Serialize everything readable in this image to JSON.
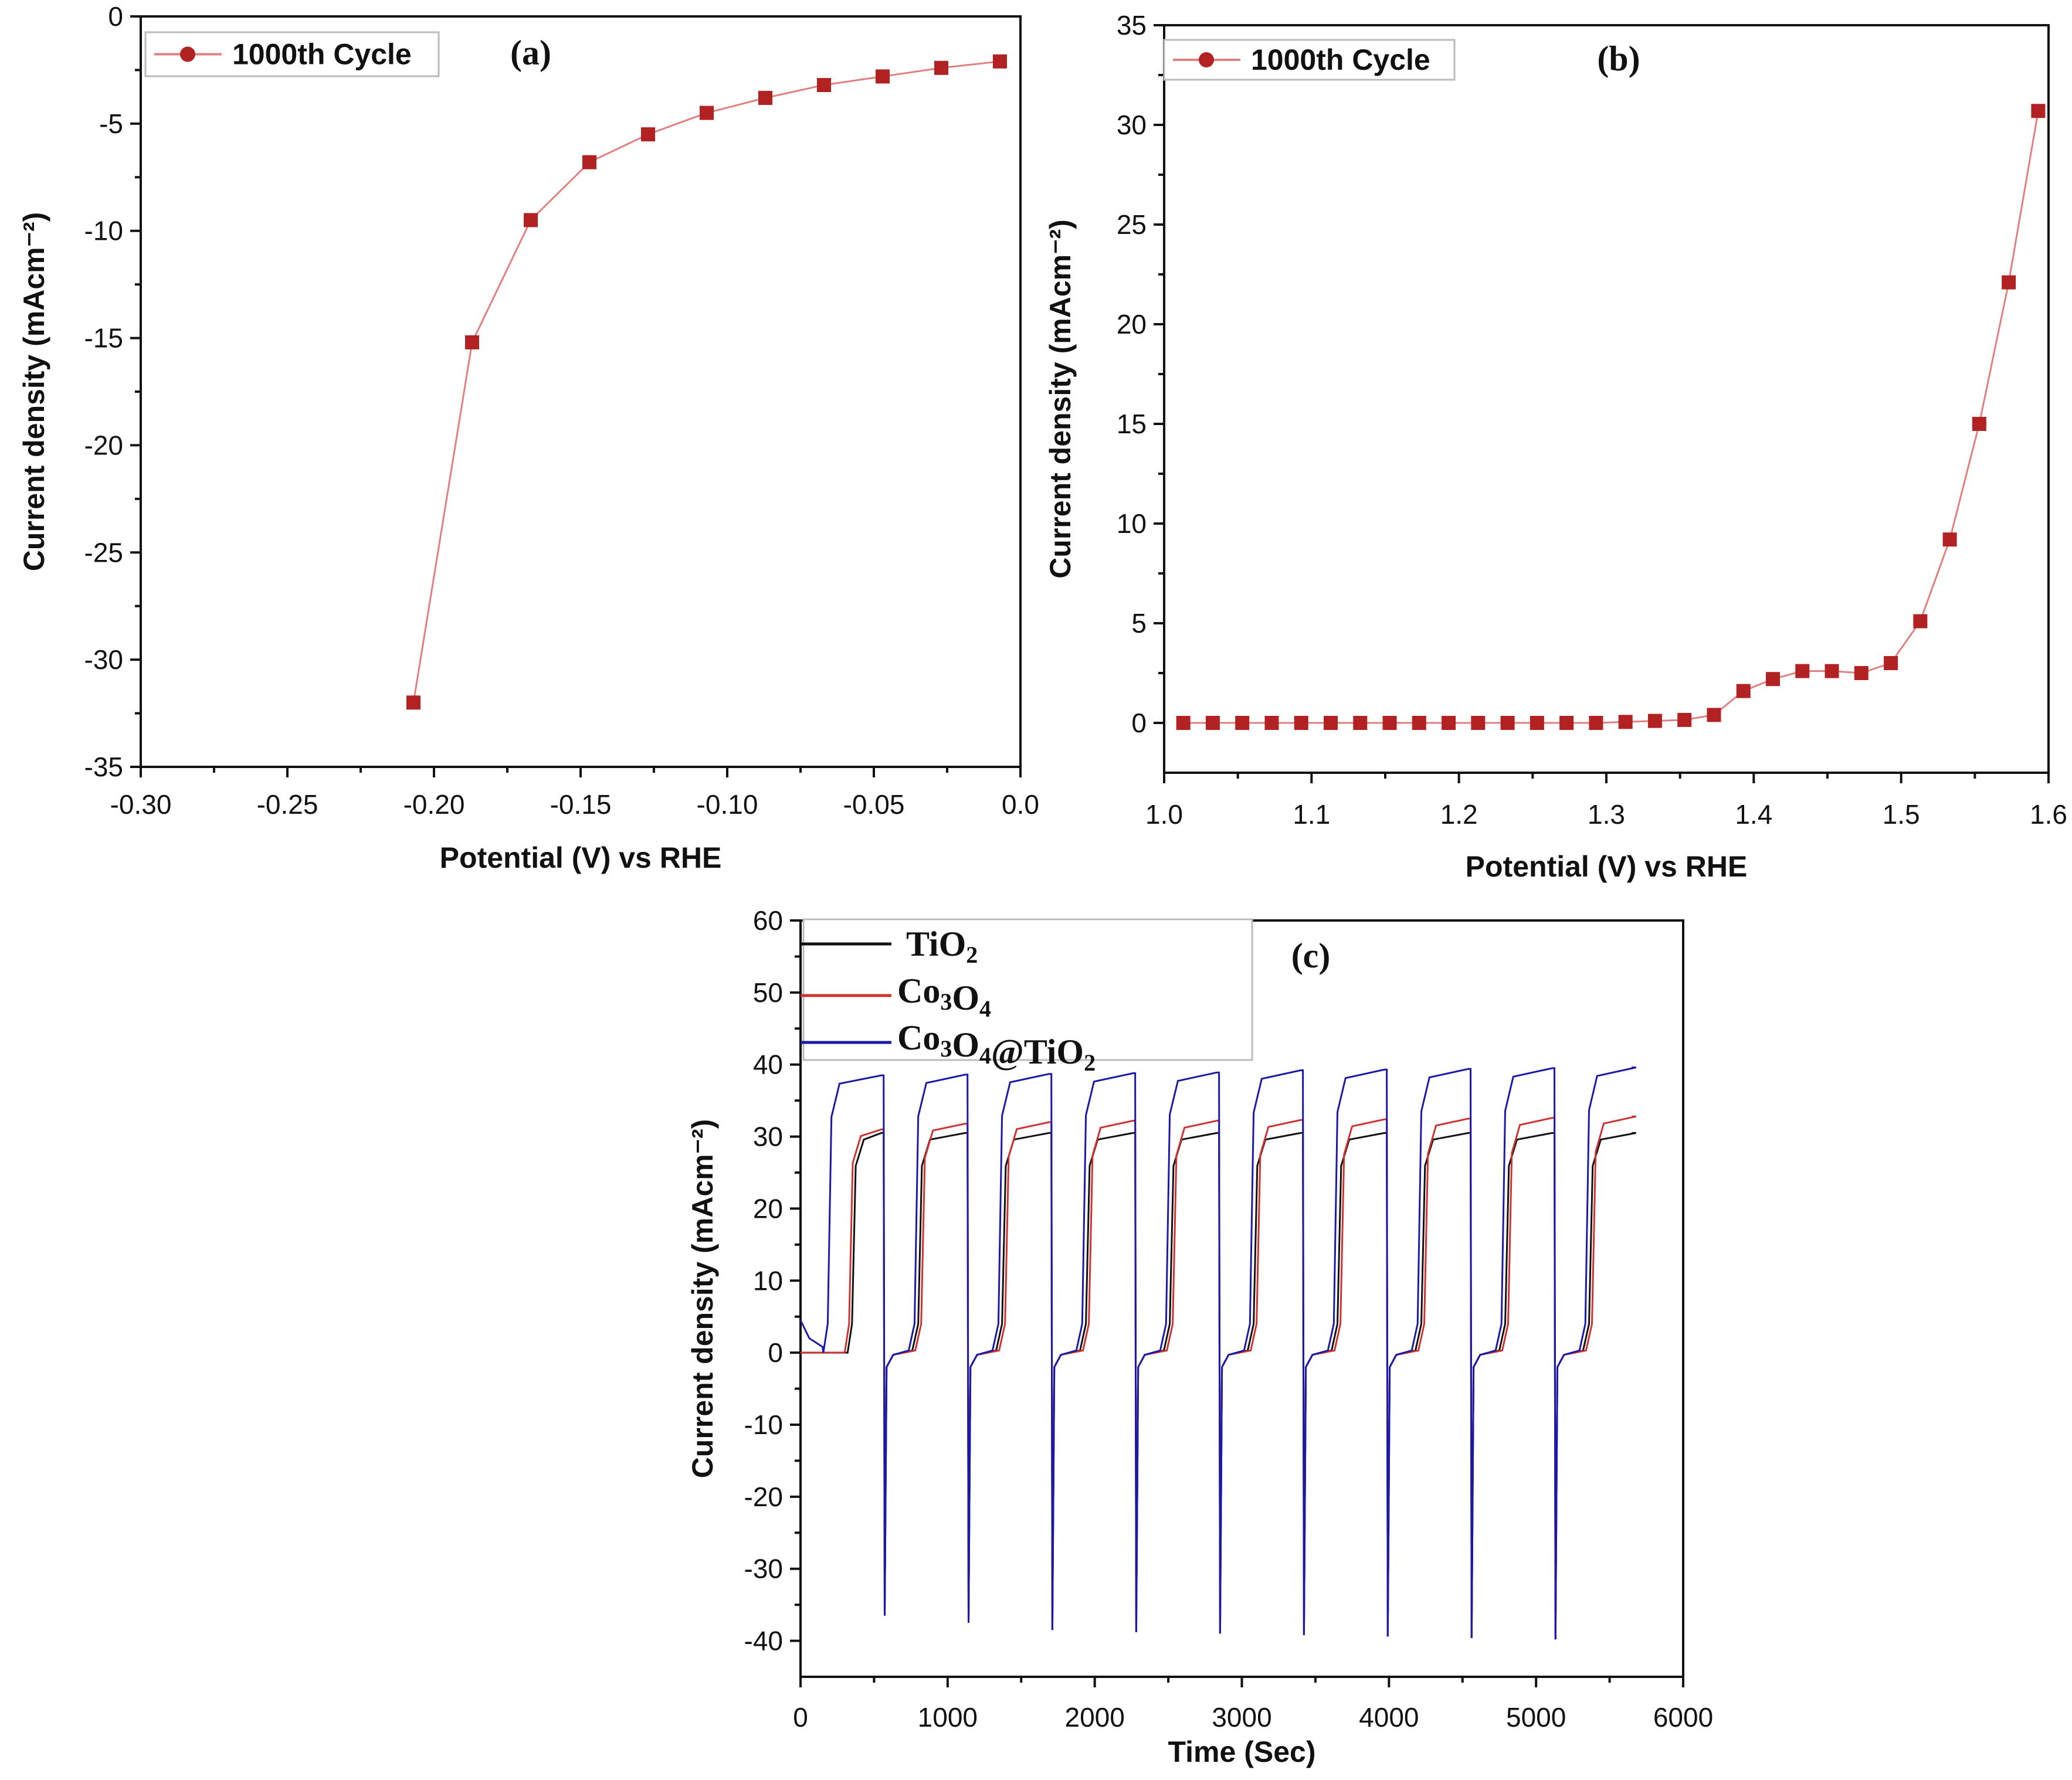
{
  "figure": {
    "colors": {
      "marker": "#b22222",
      "marker_line": "#e08080",
      "tio2": "#111111",
      "co3o4": "#cc3333",
      "composite": "#1a1aa6"
    }
  },
  "chart_data": [
    {
      "id": "a",
      "type": "line",
      "panel_label": "(a)",
      "xlabel": "Potential (V) vs RHE",
      "ylabel": "Current density (mAcm⁻²)",
      "xlim": [
        -0.3,
        0.0
      ],
      "ylim": [
        -35,
        0
      ],
      "xticks": [
        "-0.30",
        "-0.25",
        "-0.20",
        "-0.15",
        "-0.10",
        "-0.05",
        "0.0"
      ],
      "yticks": [
        "0",
        "-5",
        "-10",
        "-15",
        "-20",
        "-25",
        "-30",
        "-35"
      ],
      "series": [
        {
          "name": "1000th Cycle",
          "x": [
            -0.207,
            -0.187,
            -0.167,
            -0.147,
            -0.127,
            -0.107,
            -0.087,
            -0.067,
            -0.047,
            -0.027,
            -0.007
          ],
          "y": [
            -32.0,
            -15.2,
            -9.5,
            -6.8,
            -5.5,
            -4.5,
            -3.8,
            -3.2,
            -2.8,
            -2.4,
            -2.1
          ]
        }
      ]
    },
    {
      "id": "b",
      "type": "line",
      "panel_label": "(b)",
      "xlabel": "Potential (V) vs RHE",
      "ylabel": "Current density (mAcm⁻²)",
      "xlim": [
        1.0,
        1.6
      ],
      "ylim": [
        -2.5,
        35
      ],
      "xticks": [
        "1.0",
        "1.1",
        "1.2",
        "1.3",
        "1.4",
        "1.5",
        "1.6"
      ],
      "yticks": [
        "0",
        "5",
        "10",
        "15",
        "20",
        "25",
        "30",
        "35"
      ],
      "series": [
        {
          "name": "1000th Cycle",
          "x": [
            1.013,
            1.033,
            1.053,
            1.073,
            1.093,
            1.113,
            1.133,
            1.153,
            1.173,
            1.193,
            1.213,
            1.233,
            1.253,
            1.273,
            1.293,
            1.313,
            1.333,
            1.353,
            1.373,
            1.393,
            1.413,
            1.433,
            1.453,
            1.473,
            1.493,
            1.513,
            1.533,
            1.553,
            1.573,
            1.593
          ],
          "y": [
            0,
            0,
            0,
            0,
            0,
            0,
            0,
            0,
            0,
            0,
            0,
            0,
            0,
            0,
            0,
            0.05,
            0.1,
            0.15,
            0.4,
            1.6,
            2.2,
            2.6,
            2.6,
            2.5,
            3.0,
            5.1,
            9.2,
            15.0,
            22.1,
            30.7
          ]
        }
      ]
    },
    {
      "id": "c",
      "type": "line",
      "panel_label": "(c)",
      "xlabel": "Time (Sec)",
      "ylabel": "Current density (mAcm⁻²)",
      "xlim": [
        0,
        6000
      ],
      "ylim": [
        -45,
        60
      ],
      "xticks": [
        "0",
        "1000",
        "2000",
        "3000",
        "4000",
        "5000",
        "6000"
      ],
      "yticks": [
        "60",
        "50",
        "40",
        "30",
        "20",
        "10",
        "0",
        "-10",
        "-20",
        "-30",
        "-40"
      ],
      "legend": [
        {
          "text": "TiO",
          "sub": "2",
          "after": ""
        },
        {
          "text": "Co",
          "sub": "3",
          "mid": "O",
          "sub2": "4",
          "after": ""
        },
        {
          "text": "Co",
          "sub": "3",
          "mid": "O",
          "sub2": "4",
          "after": "@TiO",
          "sub3": "2"
        }
      ],
      "cycle_period": 570,
      "cycle_count": 10,
      "series": [
        {
          "name": "TiO2",
          "on_level": [
            30.5,
            30.5,
            30.5,
            30.5,
            30.5,
            30.5,
            30.5,
            30.5,
            30.5,
            30.5
          ],
          "spike": [
            -36.5,
            -37.5,
            -38.5,
            -38.8,
            -39.0,
            -39.2,
            -39.4,
            -39.6,
            -39.8,
            -39.8
          ]
        },
        {
          "name": "Co3O4",
          "on_level": [
            31.0,
            31.8,
            32.0,
            32.2,
            32.2,
            32.3,
            32.4,
            32.5,
            32.6,
            32.8
          ],
          "spike": [
            -36.5,
            -37.5,
            -38.5,
            -38.8,
            -39.0,
            -39.2,
            -39.4,
            -39.6,
            -39.8,
            -39.8
          ]
        },
        {
          "name": "Co3O4@TiO2",
          "on_level": [
            38.5,
            38.6,
            38.7,
            38.8,
            38.9,
            39.2,
            39.3,
            39.4,
            39.5,
            39.6
          ],
          "spike": [
            -36.5,
            -37.5,
            -38.5,
            -38.8,
            -39.0,
            -39.2,
            -39.4,
            -39.6,
            -39.8,
            -39.8
          ]
        }
      ]
    }
  ]
}
